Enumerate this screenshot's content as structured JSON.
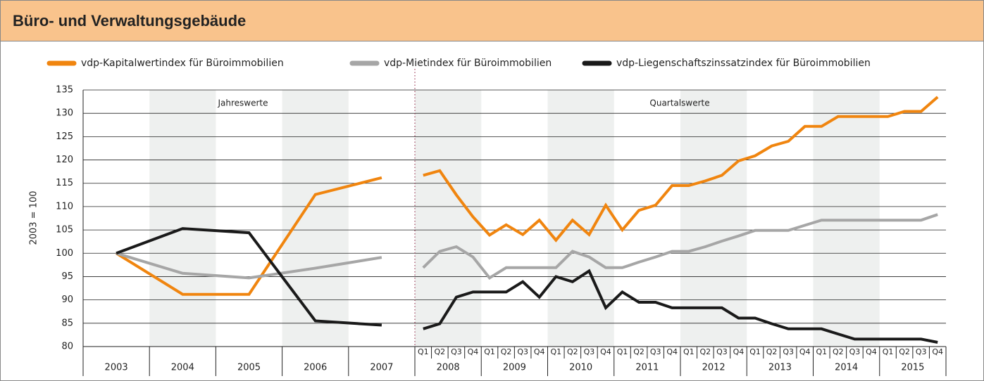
{
  "chart_data": {
    "type": "line",
    "title": "Büro- und Verwaltungsgebäude",
    "y_label": "2003 = 100",
    "ylim": [
      80,
      135
    ],
    "yticks": [
      80,
      85,
      90,
      95,
      100,
      105,
      110,
      115,
      120,
      125,
      130,
      135
    ],
    "grid": true,
    "annotations": [
      "Jahreswerte",
      "Quartalswerte"
    ],
    "annual_categories": [
      "2003",
      "2004",
      "2005",
      "2006",
      "2007"
    ],
    "quarterly_years": [
      "2008",
      "2009",
      "2010",
      "2011",
      "2012",
      "2013",
      "2014",
      "2015"
    ],
    "quarters": [
      "Q1",
      "Q2",
      "Q3",
      "Q4"
    ],
    "series": [
      {
        "name": "vdp-Kapitalwertindex für Büroimmobilien",
        "color": "#f0850f",
        "annual_values": [
          100,
          91.2,
          91.2,
          112.6,
          116.2
        ],
        "quarterly_values": [
          116.7,
          117.7,
          112.5,
          107.8,
          103.9,
          106.1,
          104.0,
          107.1,
          102.8,
          107.1,
          104.0,
          110.3,
          105.0,
          109.2,
          110.3,
          114.5,
          114.5,
          115.5,
          116.7,
          119.8,
          120.9,
          123.0,
          124.0,
          127.2,
          127.2,
          129.3,
          129.3,
          129.3,
          129.3,
          130.4,
          130.4,
          133.5
        ]
      },
      {
        "name": "vdp-Mietindex für Büroimmobilien",
        "color": "#a6a6a6",
        "annual_values": [
          100,
          95.7,
          94.7,
          96.8,
          99.1
        ],
        "quarterly_values": [
          96.9,
          100.4,
          101.4,
          99.2,
          94.7,
          96.9,
          96.9,
          96.9,
          96.9,
          100.4,
          99.2,
          96.9,
          96.9,
          98.1,
          99.2,
          100.4,
          100.4,
          101.4,
          102.6,
          103.7,
          104.9,
          104.9,
          104.9,
          106.0,
          107.1,
          107.1,
          107.1,
          107.1,
          107.1,
          107.1,
          107.1,
          108.3
        ]
      },
      {
        "name": "vdp-Liegenschaftszinssatzindex für Büroimmobilien",
        "color": "#1a1a1a",
        "annual_values": [
          100,
          105.3,
          104.4,
          85.5,
          84.6
        ],
        "quarterly_values": [
          83.8,
          84.9,
          90.6,
          91.7,
          91.7,
          91.7,
          93.9,
          90.6,
          95.0,
          93.9,
          96.2,
          88.3,
          91.7,
          89.5,
          89.5,
          88.3,
          88.3,
          88.3,
          88.3,
          86.1,
          86.1,
          84.9,
          83.8,
          83.8,
          83.8,
          82.7,
          81.6,
          81.6,
          81.6,
          81.6,
          81.6,
          80.9
        ]
      }
    ]
  }
}
